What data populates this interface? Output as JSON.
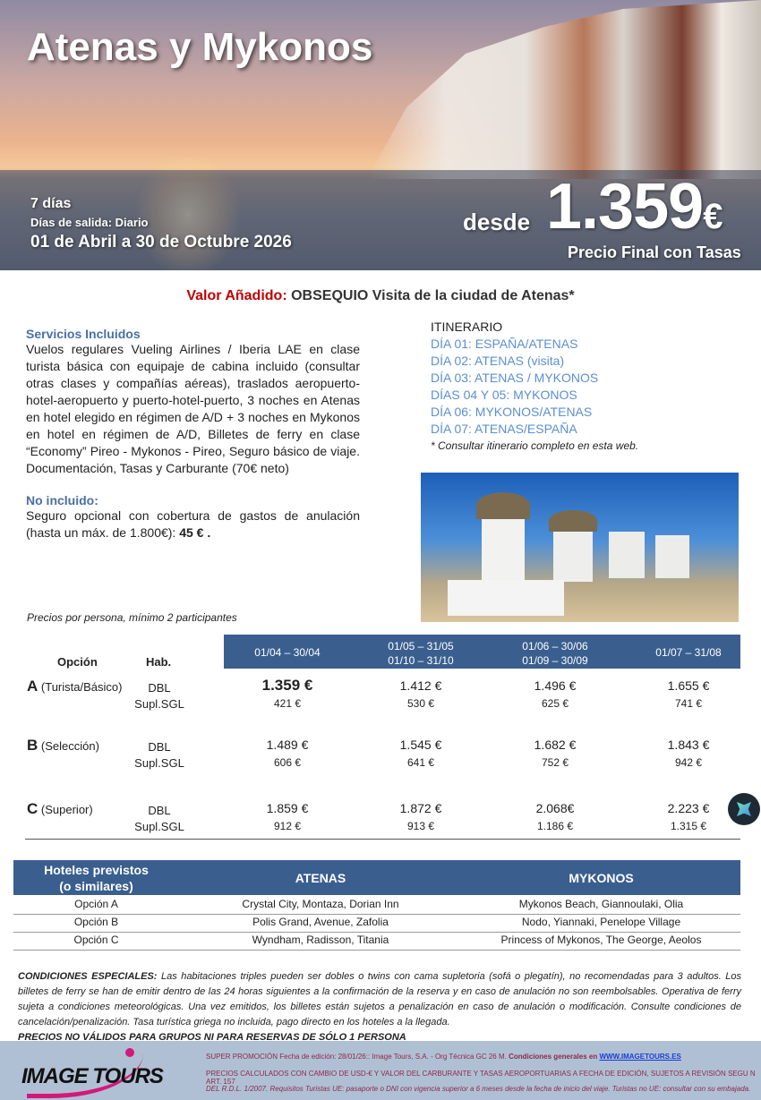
{
  "hero": {
    "title": "Atenas y Mykonos",
    "days": "7 días",
    "departures": "Días de salida: Diario",
    "dates": "01 de Abril a 30 de Octubre 2026",
    "from": "desde",
    "price": "1.359",
    "currency": "€",
    "price_note": "Precio Final con Tasas"
  },
  "added_value": {
    "label": "Valor Añadido:",
    "text": "OBSEQUIO Visita de la ciudad de Atenas*"
  },
  "included": {
    "title": "Servicios Incluidos",
    "text": "Vuelos regulares  Vueling Airlines / Iberia LAE en clase turista básica con equipaje de cabina incluido (consultar otras clases y compañías aéreas), traslados aeropuerto-hotel-aeropuerto y puerto-hotel-puerto, 3 noches en Atenas en hotel elegido en régimen de A/D + 3 noches  en Mykonos en hotel en régimen de A/D, Billetes de ferry en clase “Economy”  Pireo - Mykonos - Pireo, Seguro básico de viaje.  Documentación, Tasas y Carburante (70€ neto)"
  },
  "not_included": {
    "title": "No incluido:",
    "text": "Seguro opcional con cobertura de gastos de anulación (hasta un máx. de 1.800€):",
    "price": "45 € ."
  },
  "itinerary": {
    "title": "ITINERARIO",
    "days": [
      "DÍA 01: ESPAÑA/ATENAS",
      "DÍA 02: ATENAS (visita)",
      "DÍA 03: ATENAS / MYKONOS",
      "DÍAS 04 Y 05: MYKONOS",
      "DÍA 06: MYKONOS/ATENAS",
      "DÍA 07: ATENAS/ESPAÑA"
    ],
    "note": "* Consultar itinerario completo en esta web."
  },
  "prices": {
    "note": "Precios por persona, mínimo 2 participantes",
    "col_option": "Opción",
    "col_room": "Hab.",
    "periods": [
      [
        "01/04 – 30/04"
      ],
      [
        "01/05 – 31/05",
        "01/10 – 31/10"
      ],
      [
        "01/06 – 30/06",
        "01/09 – 30/09"
      ],
      [
        "01/07 – 31/08"
      ]
    ],
    "rows": [
      {
        "letter": "A",
        "name": "(Turista/Básico)",
        "dbl": "DBL",
        "sgl": "Supl.SGL",
        "dbl_prices": [
          "1.359 €",
          "1.412 €",
          "1.496 €",
          "1.655 €"
        ],
        "sgl_prices": [
          "421 €",
          "530 €",
          "625 €",
          "741 €"
        ]
      },
      {
        "letter": "B",
        "name": "(Selección)",
        "dbl": "DBL",
        "sgl": "Supl.SGL",
        "dbl_prices": [
          "1.489 €",
          "1.545 €",
          "1.682 €",
          "1.843 €"
        ],
        "sgl_prices": [
          "606 €",
          "641 €",
          "752 €",
          "942 €"
        ]
      },
      {
        "letter": "C",
        "name": " (Superior)",
        "dbl": "DBL",
        "sgl": "Supl.SGL",
        "dbl_prices": [
          "1.859 €",
          "1.872 €",
          "2.068€",
          "2.223 €"
        ],
        "sgl_prices": [
          "912 €",
          "913 €",
          "1.186 €",
          "1.315 €"
        ]
      }
    ]
  },
  "hotels": {
    "header": [
      "Hoteles previstos",
      "(o similares)"
    ],
    "col_athens": "ATENAS",
    "col_mykonos": "MYKONOS",
    "rows": [
      [
        "Opción A",
        "Crystal City, Montaza, Dorian Inn",
        "Mykonos Beach, Giannoulaki, Olia"
      ],
      [
        "Opción B",
        "Polis Grand, Avenue, Zafolia",
        "Nodo, Yiannaki, Penelope Village"
      ],
      [
        "Opción C",
        "Wyndham, Radisson, Titania",
        "Princess of Mykonos, The George, Aeolos"
      ]
    ]
  },
  "conditions": {
    "label": "CONDICIONES ESPECIALES:",
    "text": "  Las habitaciones triples pueden ser dobles o twins con cama supletoria (sofá o plegatín), no recomendadas para 3 adultos. Los billetes de ferry se han de emitir dentro de las 24 horas siguientes a la confirmación de la reserva y en caso de anulación no son reembolsables. Operativa de ferry sujeta a condiciones meteorológicas. Una vez emitidos, los billetes están sujetos a penalización en caso de anulación o modificación. Consulte condiciones de cancelación/penalización. Tasa turística griega no incluida, pago directo en los hoteles a la llegada.",
    "warning": "PRECIOS NO VÁLIDOS PARA GRUPOS NI PARA RESERVAS DE SÓLO 1 PERSONA"
  },
  "footer": {
    "logo": "IMAGE TOURS",
    "line1": "SUPER PROMOCIÓN Fecha de edición: 28/01/26::  Image Tours, S.A.  -  Org Técnica GC 26 M.",
    "line1_bold": "Condiciones generales en",
    "link": "WWW.IMAGETOURS.ES",
    "line2": "PRECIOS CALCULADOS CON CAMBIO DE USD-€ Y VALOR DEL CARBURANTE Y TASAS AEROPORTUARIAS A FECHA DE EDICIÓN, SUJETOS A REVISIÓN SEGU N ART. 157",
    "line3": "DEL R.D.L. 1/2007. Requisitos Turistas UE: pasaporte o DNI con vigencia superior a 6 meses desde la fecha de inicio del viaje. Turistas no UE: consultar con su embajada."
  },
  "colors": {
    "accent_blue": "#3a5f8f",
    "red": "#c00000",
    "logo_magenta": "#d4187a"
  }
}
